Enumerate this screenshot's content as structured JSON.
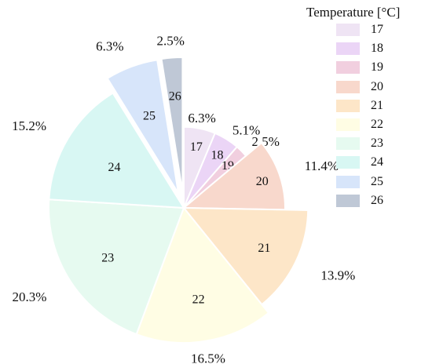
{
  "chart_data": {
    "type": "pie",
    "legend_title": "Temperature [°C]",
    "legend_position": "top-right",
    "start_angle_deg": 90,
    "direction": "clockwise",
    "slices": [
      {
        "label": "17",
        "value": 6.3,
        "pct_label": "6.3%",
        "color": "#efe4f4",
        "exploded": false,
        "radius_scale": 0.6
      },
      {
        "label": "18",
        "value": 5.1,
        "pct_label": "5.1%",
        "color": "#ebd5f6",
        "exploded": false,
        "radius_scale": 0.6
      },
      {
        "label": "19",
        "value": 2.5,
        "pct_label": "2.5%",
        "color": "#f1cfdf",
        "exploded": false,
        "radius_scale": 0.6
      },
      {
        "label": "20",
        "value": 11.4,
        "pct_label": "11.4%",
        "color": "#f8d8cc",
        "exploded": false,
        "radius_scale": 0.75
      },
      {
        "label": "21",
        "value": 13.9,
        "pct_label": "13.9%",
        "color": "#fde6c8",
        "exploded": false,
        "radius_scale": 0.92
      },
      {
        "label": "22",
        "value": 16.5,
        "pct_label": "16.5%",
        "color": "#fffde4",
        "exploded": false,
        "radius_scale": 1.0
      },
      {
        "label": "23",
        "value": 20.3,
        "pct_label": "20.3%",
        "color": "#e6faf0",
        "exploded": false,
        "radius_scale": 1.0
      },
      {
        "label": "24",
        "value": 15.2,
        "pct_label": "15.2%",
        "color": "#d8f7f3",
        "exploded": false,
        "radius_scale": 1.0
      },
      {
        "label": "25",
        "value": 6.3,
        "pct_label": "6.3%",
        "color": "#d7e5fa",
        "exploded": true,
        "radius_scale": 1.0
      },
      {
        "label": "26",
        "value": 2.5,
        "pct_label": "2.5%",
        "color": "#bfc8d6",
        "exploded": true,
        "radius_scale": 1.0
      }
    ]
  }
}
